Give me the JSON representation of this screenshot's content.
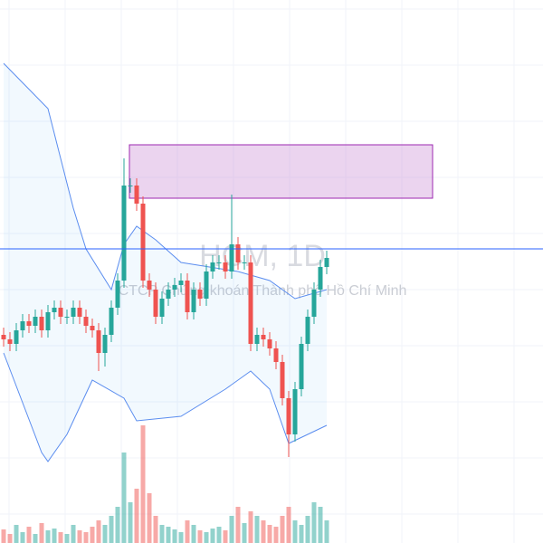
{
  "chart_data": {
    "type": "candlestick",
    "watermark": "HCM, 1D",
    "subtitle": "CTCP Chứng khoán Thành phố Hồ Chí Minh",
    "ylim": [
      0,
      60
    ],
    "price_line": 32.5,
    "up_color": "#26a69a",
    "down_color": "#ef5350",
    "open": [
      23,
      22.5,
      22,
      23.5,
      24.5,
      24,
      25,
      23.5,
      25.5,
      26,
      25,
      25,
      26,
      25,
      24,
      23.5,
      21,
      23,
      26,
      29,
      39.5,
      39.5,
      37.5,
      29,
      28,
      25,
      27,
      28,
      28.5,
      29,
      25.5,
      28,
      27,
      30,
      31,
      31,
      30,
      33,
      31,
      31,
      22,
      23,
      22.5,
      21.5,
      20,
      16,
      12,
      17,
      22,
      25,
      28,
      30.5
    ],
    "high": [
      23.8,
      23.3,
      24.3,
      25.3,
      25.3,
      25.8,
      25.8,
      26.3,
      26.8,
      26.8,
      25.8,
      26.8,
      26.8,
      25.8,
      24.8,
      24.3,
      23.8,
      26.8,
      29.8,
      42.5,
      40.3,
      40.3,
      38.3,
      29.8,
      28.8,
      27.8,
      28.8,
      29.3,
      29.8,
      29.8,
      28.8,
      28.8,
      30.8,
      31.8,
      31.8,
      31.8,
      38.5,
      33.8,
      31.8,
      31.8,
      23.8,
      23.8,
      23.3,
      22.3,
      20.8,
      16.8,
      17.8,
      22.8,
      25.8,
      28.8,
      31.3,
      32.3
    ],
    "low": [
      21.7,
      21.2,
      21.2,
      22.7,
      23.2,
      23.2,
      22.7,
      22.7,
      24.7,
      24.2,
      24.2,
      24.2,
      24.2,
      23.2,
      22.7,
      19,
      19.5,
      22.2,
      25.2,
      28.2,
      38.7,
      36.7,
      28.2,
      27.2,
      24.2,
      24.2,
      26.2,
      27.2,
      27.7,
      24.7,
      24.7,
      26.2,
      26.2,
      29.2,
      30.2,
      29.2,
      29.2,
      30.2,
      30.2,
      21.2,
      21.2,
      21.7,
      20.7,
      19.2,
      15.2,
      9.5,
      11.2,
      16.2,
      21.2,
      24.2,
      27.2,
      29.7
    ],
    "close": [
      22.5,
      22,
      23.5,
      24.5,
      24,
      25,
      23.5,
      25.5,
      26,
      25,
      25,
      26,
      25,
      24,
      23.5,
      21,
      23,
      26,
      29,
      39.5,
      39.5,
      37.5,
      29,
      28,
      25,
      27,
      28,
      28.5,
      29,
      25.5,
      28,
      27,
      30,
      31,
      31,
      30,
      33,
      31,
      31,
      22,
      23,
      22.5,
      21.5,
      20,
      16,
      12,
      17,
      22,
      25,
      28,
      30.5,
      31.5
    ],
    "volume": [
      15,
      10,
      20,
      12,
      18,
      10,
      22,
      14,
      16,
      12,
      10,
      20,
      14,
      12,
      18,
      25,
      20,
      30,
      40,
      100,
      45,
      60,
      130,
      55,
      30,
      20,
      18,
      15,
      12,
      25,
      20,
      14,
      12,
      16,
      18,
      14,
      30,
      40,
      22,
      35,
      30,
      25,
      20,
      18,
      30,
      40,
      25,
      20,
      30,
      45,
      40,
      25
    ],
    "volume_ylim": [
      0,
      600
    ],
    "series": [
      {
        "name": "upper",
        "color": "#5b8def",
        "x": [
          0,
          7,
          11,
          13,
          17,
          19,
          21,
          24,
          28,
          37,
          42,
          46,
          51
        ],
        "values": [
          53,
          48,
          37,
          32.5,
          28,
          33,
          35,
          33.5,
          31,
          30,
          29,
          27,
          28
        ]
      },
      {
        "name": "lower",
        "color": "#5b8def",
        "x": [
          0,
          6,
          7,
          10,
          14,
          19,
          21,
          28,
          35,
          39,
          42,
          45,
          48,
          51
        ],
        "values": [
          21,
          10,
          9,
          12,
          18,
          16,
          13.5,
          14,
          17,
          19,
          17,
          11,
          12,
          13
        ]
      }
    ]
  }
}
